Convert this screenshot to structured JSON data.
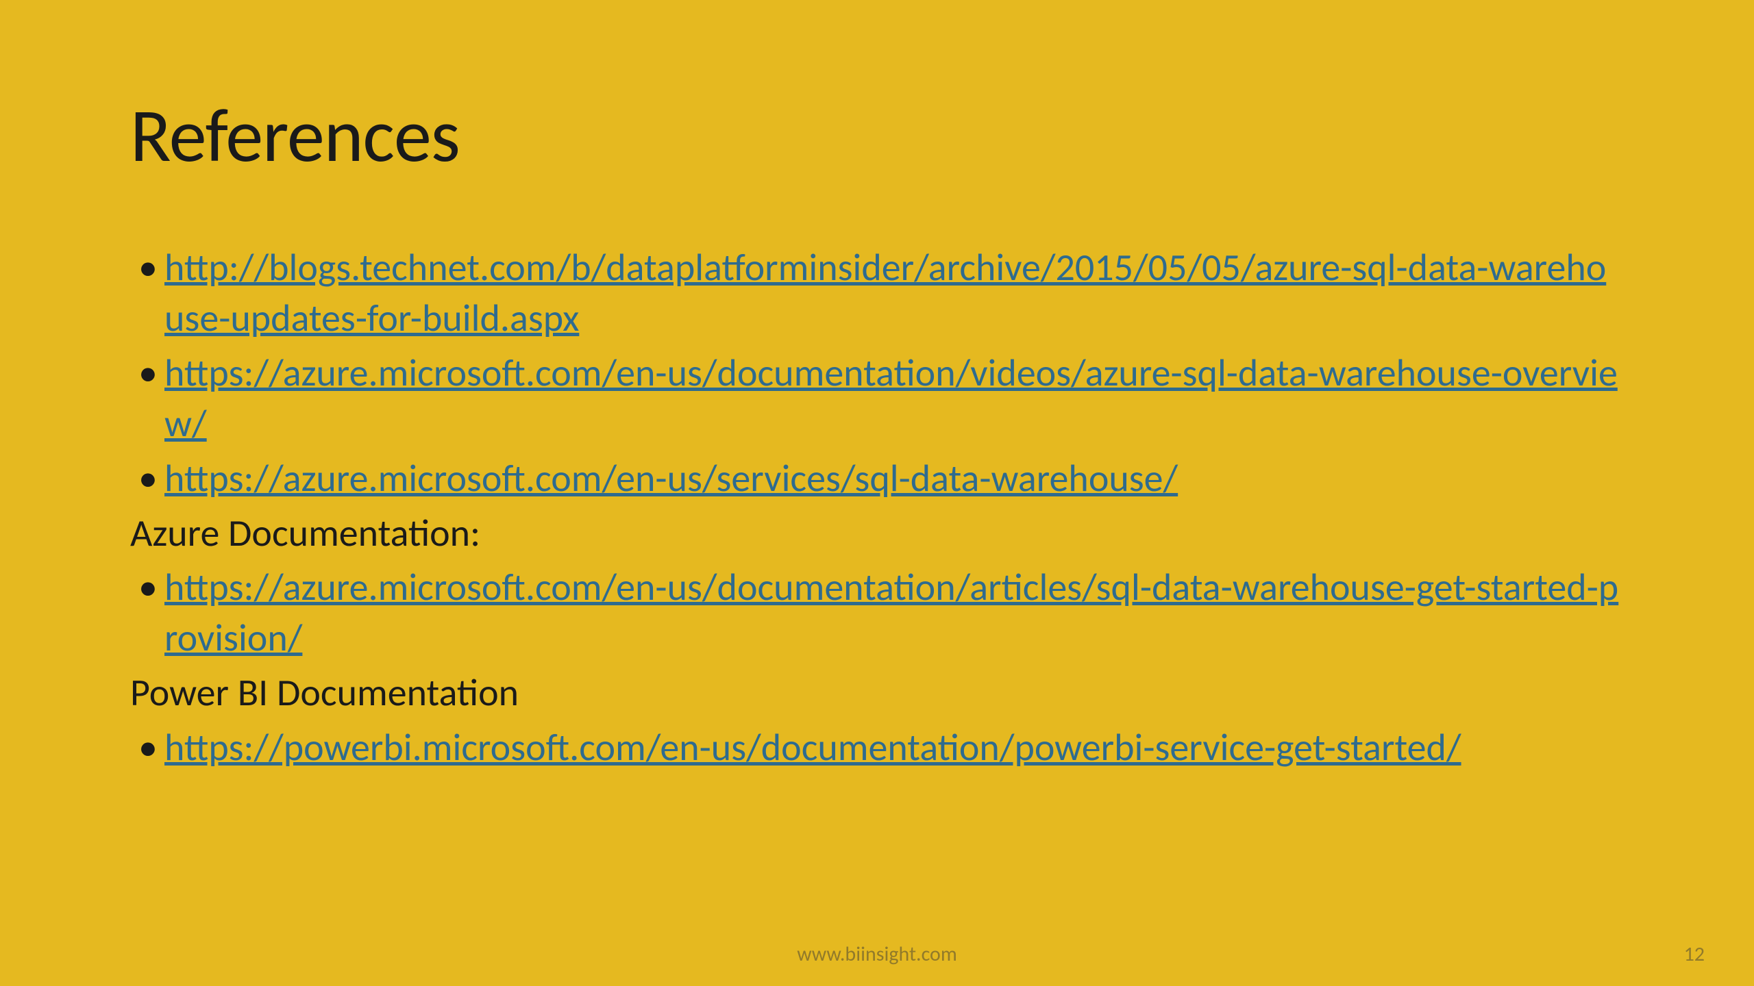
{
  "slide": {
    "background_color": "#e5b920",
    "link_color": "#2e6b8f",
    "text_color": "#1a1a1a",
    "footer_color": "#917a2a",
    "title": "References",
    "title_fontsize": 110,
    "body_fontsize": 56,
    "links": {
      "item1": "http://blogs.technet.com/b/dataplatforminsider/archive/2015/05/05/azure-sql-data-warehouse-updates-for-build.aspx",
      "item2": "https://azure.microsoft.com/en-us/documentation/videos/azure-sql-data-warehouse-overview/",
      "item3": "https://azure.microsoft.com/en-us/services/sql-data-warehouse/",
      "item4": "https://azure.microsoft.com/en-us/documentation/articles/sql-data-warehouse-get-started-provision/",
      "item5": "https://powerbi.microsoft.com/en-us/documentation/powerbi-service-get-started/"
    },
    "sections": {
      "azure": "Azure Documentation:",
      "powerbi": "Power BI Documentation"
    },
    "footer_text": "www.biinsight.com",
    "page_number": "12"
  }
}
